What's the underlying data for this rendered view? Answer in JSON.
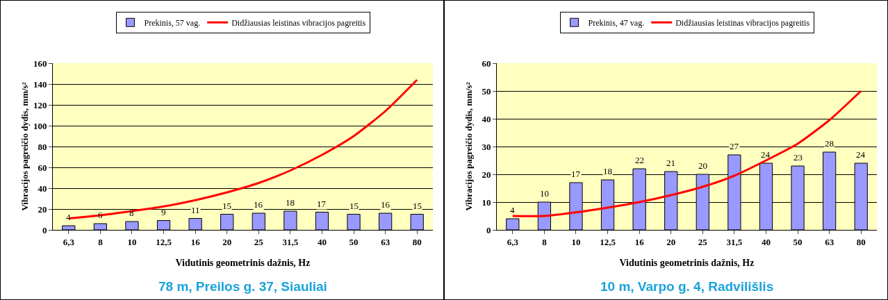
{
  "chart_data": [
    {
      "type": "bar",
      "categories": [
        "6,3",
        "8",
        "10",
        "12,5",
        "16",
        "20",
        "25",
        "31,5",
        "40",
        "50",
        "63",
        "80"
      ],
      "xlabel": "Vidutinis geometrinis dažnis, Hz",
      "ylabel": "Vibracijos pagreičio dydis, mm/s²",
      "ylim": [
        0,
        160
      ],
      "yticks": [
        0,
        20,
        40,
        60,
        80,
        100,
        120,
        140,
        160
      ],
      "grid": "y",
      "legend": "top",
      "annotations": [
        "78 m, Preilos g. 37, Siauliai"
      ],
      "series": [
        {
          "name": "Prekinis, 57 vag.",
          "color": "#9999ff",
          "values": [
            4,
            6,
            8,
            9,
            11,
            15,
            16,
            18,
            17,
            15,
            16,
            15
          ],
          "value_labels": [
            "4",
            "6",
            "8",
            "9",
            "11",
            "15",
            "16",
            "18",
            "17",
            "15",
            "16",
            "15"
          ]
        },
        {
          "name": "Didžiausias leistinas vibracijos pagreitis",
          "type": "line",
          "color": "#ff0000",
          "values": [
            11,
            14,
            18,
            22.5,
            28.5,
            36,
            45,
            57,
            72,
            90,
            114,
            144
          ]
        }
      ]
    },
    {
      "type": "bar",
      "categories": [
        "6,3",
        "8",
        "10",
        "12,5",
        "16",
        "20",
        "25",
        "31,5",
        "40",
        "50",
        "63",
        "80"
      ],
      "xlabel": "Vidutinis geometrinis dažnis, Hz",
      "ylabel": "Vibracijos pagreičio dydis, mm/s²",
      "ylim": [
        0,
        60
      ],
      "yticks": [
        0,
        10,
        20,
        30,
        40,
        50,
        60
      ],
      "grid": "y",
      "legend": "top",
      "annotations": [
        "10 m, Varpo g. 4, Radvilišlis"
      ],
      "series": [
        {
          "name": "Prekinis, 47 vag.",
          "color": "#9999ff",
          "values": [
            4,
            10,
            17,
            18,
            22,
            21,
            20,
            27,
            24,
            23,
            28,
            24
          ],
          "value_labels": [
            "4",
            "10",
            "17",
            "18",
            "22",
            "21",
            "20",
            "27",
            "24",
            "23",
            "28",
            "24"
          ]
        },
        {
          "name": "Didžiausias leistinas vibracijos pagreitis",
          "type": "line",
          "color": "#ff0000",
          "values": [
            5,
            5,
            6.3,
            8,
            10,
            12.5,
            15.5,
            19.5,
            25,
            31,
            39.5,
            50
          ]
        }
      ]
    }
  ]
}
